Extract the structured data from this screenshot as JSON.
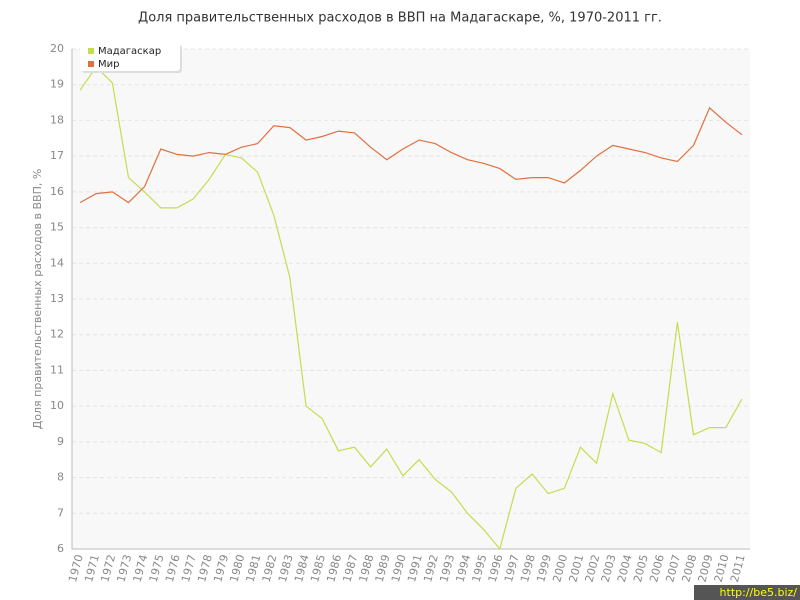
{
  "chart_data": {
    "type": "line",
    "title": "Доля правительственных расходов в ВВП на Мадагаскаре, %, 1970-2011 гг.",
    "y_label": "Доля правительственных расходов в ВВП, %",
    "categories": [
      "1970",
      "1971",
      "1972",
      "1973",
      "1974",
      "1975",
      "1976",
      "1977",
      "1978",
      "1979",
      "1980",
      "1981",
      "1982",
      "1983",
      "1984",
      "1985",
      "1986",
      "1987",
      "1988",
      "1989",
      "1990",
      "1991",
      "1992",
      "1993",
      "1994",
      "1995",
      "1996",
      "1997",
      "1998",
      "1999",
      "2000",
      "2001",
      "2002",
      "2003",
      "2004",
      "2005",
      "2006",
      "2007",
      "2008",
      "2009",
      "2010",
      "2011"
    ],
    "series": [
      {
        "name": "Мадагаскар",
        "color": "#c5dc50",
        "values": [
          18.85,
          19.5,
          19.05,
          16.4,
          16.0,
          15.55,
          15.55,
          15.8,
          16.35,
          17.05,
          16.95,
          16.55,
          15.35,
          13.6,
          10.0,
          9.65,
          8.75,
          8.85,
          8.3,
          8.8,
          8.05,
          8.5,
          7.95,
          7.6,
          7.0,
          6.55,
          6.0,
          7.7,
          8.1,
          7.55,
          7.7,
          8.85,
          8.4,
          10.35,
          9.05,
          8.95,
          8.7,
          12.35,
          9.2,
          9.4,
          9.4,
          10.2
        ]
      },
      {
        "name": "Мир",
        "color": "#e0703f",
        "values": [
          15.7,
          15.95,
          16.0,
          15.7,
          16.15,
          17.2,
          17.05,
          17.0,
          17.1,
          17.05,
          17.25,
          17.35,
          17.85,
          17.8,
          17.45,
          17.55,
          17.7,
          17.65,
          17.25,
          16.9,
          17.2,
          17.45,
          17.35,
          17.1,
          16.9,
          16.8,
          16.65,
          16.35,
          16.4,
          16.4,
          16.25,
          16.6,
          17.0,
          17.3,
          17.2,
          17.1,
          16.95,
          16.85,
          17.3,
          18.35,
          17.95,
          17.6
        ]
      }
    ],
    "ylim": [
      6,
      20
    ],
    "yticks": [
      6,
      7,
      8,
      9,
      10,
      11,
      12,
      13,
      14,
      15,
      16,
      17,
      18,
      19,
      20
    ],
    "grid": true,
    "legend": "top-left",
    "watermark": "http://be5.biz/"
  }
}
